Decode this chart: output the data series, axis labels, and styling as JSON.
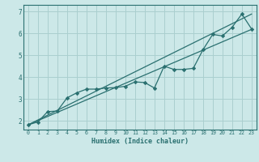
{
  "xlabel": "Humidex (Indice chaleur)",
  "bg_color": "#cce8e8",
  "grid_color": "#aacfcf",
  "line_color": "#2a7070",
  "xlim": [
    -0.5,
    23.5
  ],
  "ylim": [
    1.6,
    7.3
  ],
  "xticks": [
    0,
    1,
    2,
    3,
    4,
    5,
    6,
    7,
    8,
    9,
    10,
    11,
    12,
    13,
    14,
    15,
    16,
    17,
    18,
    19,
    20,
    21,
    22,
    23
  ],
  "yticks": [
    2,
    3,
    4,
    5,
    6,
    7
  ],
  "data_x": [
    0,
    1,
    2,
    3,
    4,
    5,
    6,
    7,
    8,
    9,
    10,
    11,
    12,
    13,
    14,
    15,
    16,
    17,
    18,
    19,
    20,
    21,
    22,
    23
  ],
  "data_y_jagged": [
    1.82,
    1.95,
    2.42,
    2.45,
    3.05,
    3.28,
    3.45,
    3.45,
    3.5,
    3.52,
    3.58,
    3.78,
    3.75,
    3.5,
    4.5,
    4.35,
    4.35,
    4.4,
    5.25,
    5.95,
    5.88,
    6.28,
    6.88,
    6.2
  ],
  "line1_x": [
    0,
    23
  ],
  "line1_y": [
    1.82,
    6.88
  ],
  "line2_x": [
    0,
    23
  ],
  "line2_y": [
    1.82,
    6.18
  ]
}
